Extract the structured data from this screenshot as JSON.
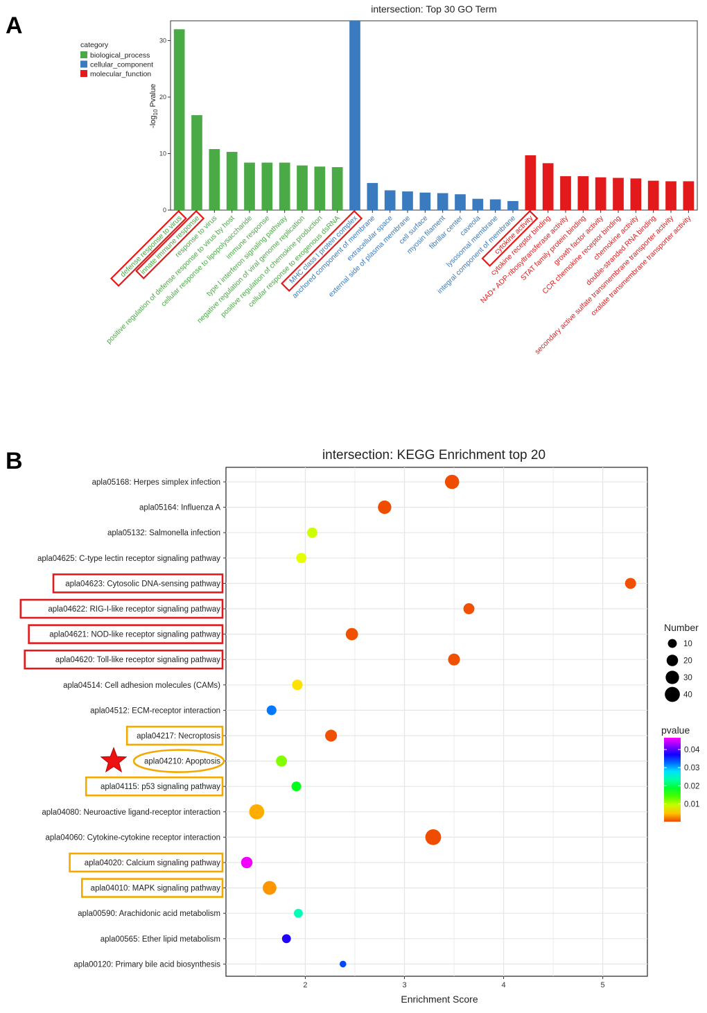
{
  "panel_a_label": "A",
  "panel_b_label": "B",
  "chart_data": [
    {
      "type": "bar",
      "title": "intersection: Top 30 GO Term",
      "ylabel_prefix": "-log",
      "ylabel_sub": "10",
      "ylabel_suffix": " Pvalue",
      "ylim": [
        0,
        33.5
      ],
      "yticks": [
        0,
        10,
        20,
        30
      ],
      "legend_title": "category",
      "legend": [
        {
          "name": "biological_process",
          "color": "#4aab46"
        },
        {
          "name": "cellular_component",
          "color": "#3a7bbf"
        },
        {
          "name": "molecular_function",
          "color": "#e31a1c"
        }
      ],
      "categories": [
        "defense response to virus",
        "innate immune response",
        "response to virus",
        "positive regulation of defense response to virus by host",
        "cellular response to lipopolysaccharide",
        "immune response",
        "type I interferon signaling pathway",
        "negative regulation of viral genome replication",
        "positive regulation of chemokine production",
        "cellular response to exogenous dsRNA",
        "MHC class I protein complex",
        "anchored component of membrane",
        "extracellular space",
        "external side of plasma membrane",
        "cell surface",
        "myosin filament",
        "fibrillar center",
        "caveola",
        "lysosomal membrane",
        "integral component of membrane",
        "cytokine activity",
        "cytokine receptor binding",
        "NAD+ ADP-ribosyltransferase activity",
        "STAT family protein binding",
        "growth factor activity",
        "CCR chemokine receptor binding",
        "chemokine activity",
        "double-stranded RNA binding",
        "secondary active sulfate transmembrane transporter activity",
        "oxalate transmembrane transporter activity"
      ],
      "values": [
        32.0,
        16.8,
        10.8,
        10.3,
        8.4,
        8.4,
        8.4,
        7.9,
        7.7,
        7.6,
        33.5,
        4.8,
        3.5,
        3.3,
        3.1,
        3.0,
        2.8,
        2.0,
        1.9,
        1.6,
        9.7,
        8.3,
        6.0,
        6.0,
        5.8,
        5.7,
        5.6,
        5.2,
        5.1,
        5.1
      ],
      "category_groups": [
        0,
        0,
        0,
        0,
        0,
        0,
        0,
        0,
        0,
        0,
        1,
        1,
        1,
        1,
        1,
        1,
        1,
        1,
        1,
        1,
        2,
        2,
        2,
        2,
        2,
        2,
        2,
        2,
        2,
        2
      ],
      "highlighted": [
        0,
        1,
        10,
        20
      ],
      "highlight_color": "#e31a1c"
    },
    {
      "type": "scatter",
      "title": "intersection: KEGG Enrichment top 20",
      "xlabel": "Enrichment Score",
      "xlim": [
        1.2,
        5.45
      ],
      "xticks": [
        2,
        3,
        4,
        5
      ],
      "pathways": [
        "apla05168: Herpes simplex infection",
        "apla05164: Influenza A",
        "apla05132: Salmonella infection",
        "apla04625: C-type lectin receptor signaling pathway",
        "apla04623: Cytosolic DNA-sensing pathway",
        "apla04622: RIG-I-like receptor signaling pathway",
        "apla04621: NOD-like receptor signaling pathway",
        "apla04620: Toll-like receptor signaling pathway",
        "apla04514: Cell adhesion molecules (CAMs)",
        "apla04512: ECM-receptor interaction",
        "apla04217: Necroptosis",
        "apla04210: Apoptosis",
        "apla04115: p53 signaling pathway",
        "apla04080: Neuroactive ligand-receptor interaction",
        "apla04060: Cytokine-cytokine receptor interaction",
        "apla04020: Calcium signaling pathway",
        "apla04010: MAPK signaling pathway",
        "apla00590: Arachidonic acid metabolism",
        "apla00565: Ether lipid metabolism",
        "apla00120: Primary bile acid biosynthesis"
      ],
      "enrichment": [
        3.48,
        2.8,
        2.07,
        1.96,
        5.28,
        3.65,
        2.47,
        3.5,
        1.92,
        1.66,
        2.26,
        1.76,
        1.91,
        1.51,
        3.29,
        1.41,
        1.64,
        1.93,
        1.81,
        2.38
      ],
      "number": [
        35,
        30,
        15,
        15,
        18,
        18,
        24,
        22,
        16,
        13,
        22,
        18,
        13,
        40,
        45,
        20,
        32,
        10,
        10,
        4
      ],
      "pvalue": [
        0.0003,
        0.0004,
        0.009,
        0.008,
        0.0005,
        0.0005,
        0.0005,
        0.0005,
        0.006,
        0.032,
        0.0005,
        0.012,
        0.018,
        0.004,
        0.0004,
        0.046,
        0.003,
        0.024,
        0.038,
        0.034
      ],
      "size_legend_title": "Number",
      "size_legend_values": [
        10,
        20,
        30,
        40
      ],
      "color_legend_title": "pvalue",
      "color_legend_ticks": [
        0.04,
        0.03,
        0.02,
        0.01
      ],
      "color_legend_range": [
        0.0002,
        0.0465
      ],
      "red_boxed": [
        4,
        5,
        6,
        7
      ],
      "orange_boxed": [
        10,
        12,
        15,
        16
      ],
      "orange_ellipse": [
        11
      ],
      "star_marker": 11,
      "red_box_color": "#e31a1c",
      "orange_box_color": "#f2a900",
      "star_color": "#ee1111"
    }
  ]
}
